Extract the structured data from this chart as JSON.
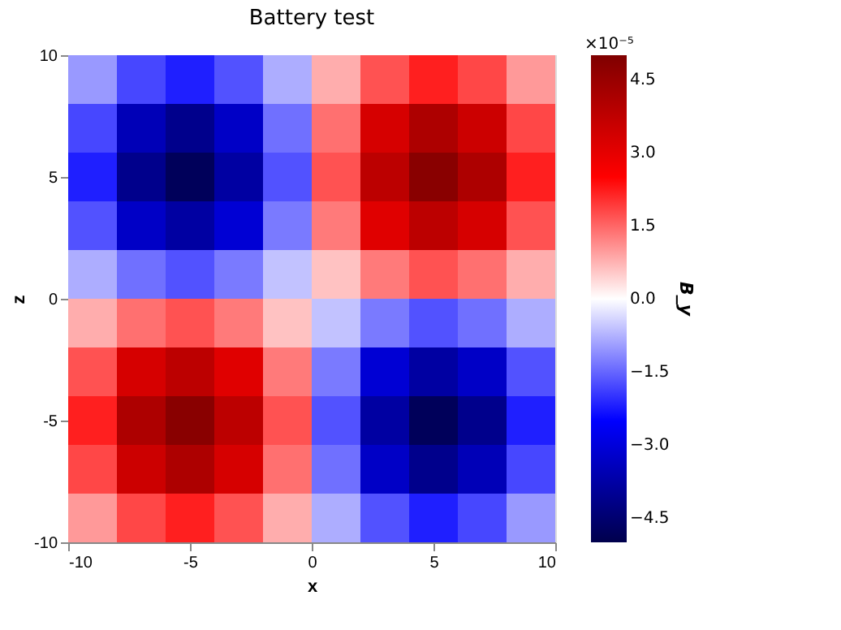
{
  "chart_data": {
    "type": "heatmap",
    "title": "Battery test",
    "xlabel": "x",
    "ylabel": "z",
    "clabel": "B_y",
    "annotations": [
      "×10⁻⁵"
    ],
    "x": [
      -9,
      -7,
      -5,
      -3,
      -1,
      1,
      3,
      5,
      7,
      9
    ],
    "y": [
      9,
      7,
      5,
      3,
      1,
      -1,
      -3,
      -5,
      -7,
      -9
    ],
    "cells": [
      [
        -1.0,
        -1.8,
        -2.2,
        -1.7,
        -0.8,
        0.8,
        1.7,
        2.2,
        1.8,
        1.0
      ],
      [
        -1.8,
        -3.5,
        -4.1,
        -3.3,
        -1.4,
        1.4,
        3.3,
        4.1,
        3.5,
        1.8
      ],
      [
        -2.2,
        -4.1,
        -4.8,
        -3.8,
        -1.7,
        1.7,
        3.8,
        4.8,
        4.1,
        2.2
      ],
      [
        -1.7,
        -3.3,
        -3.8,
        -3.1,
        -1.3,
        1.3,
        3.1,
        3.8,
        3.3,
        1.7
      ],
      [
        -0.8,
        -1.4,
        -1.7,
        -1.3,
        -0.6,
        0.6,
        1.3,
        1.7,
        1.4,
        0.8
      ],
      [
        0.8,
        1.4,
        1.7,
        1.3,
        0.6,
        -0.6,
        -1.3,
        -1.7,
        -1.4,
        -0.8
      ],
      [
        1.7,
        3.3,
        3.8,
        3.1,
        1.3,
        -1.3,
        -3.1,
        -3.8,
        -3.3,
        -1.7
      ],
      [
        2.2,
        4.1,
        4.8,
        3.8,
        1.7,
        -1.7,
        -3.8,
        -4.8,
        -4.1,
        -2.2
      ],
      [
        1.8,
        3.5,
        4.1,
        3.3,
        1.4,
        -1.4,
        -3.3,
        -4.1,
        -3.5,
        -1.8
      ],
      [
        1.0,
        1.8,
        2.2,
        1.7,
        0.8,
        -0.8,
        -1.7,
        -2.2,
        -1.8,
        -1.0
      ]
    ],
    "xlim": [
      -10,
      10
    ],
    "xticks": [
      -10,
      -5,
      0,
      5,
      10
    ],
    "ylim": [
      -10,
      10
    ],
    "yticks": [
      -10,
      -5,
      0,
      5,
      10
    ],
    "clim": [
      -5.0,
      5.0
    ],
    "cticks": [
      {
        "value": -4.5,
        "label": "−4.5"
      },
      {
        "value": -3.0,
        "label": "−3.0"
      },
      {
        "value": -1.5,
        "label": "−1.5"
      },
      {
        "value": 0,
        "label": "0.0"
      },
      {
        "value": 1.5,
        "label": "1.5"
      },
      {
        "value": 3.0,
        "label": "3.0"
      },
      {
        "value": 4.5,
        "label": "4.5"
      }
    ]
  }
}
